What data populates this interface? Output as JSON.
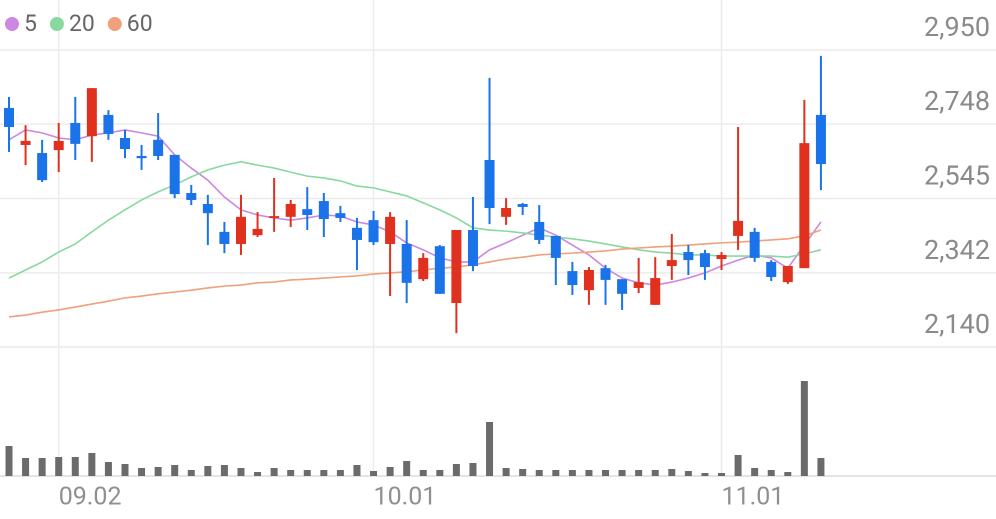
{
  "chart_data": {
    "type": "candlestick",
    "categories": [
      null,
      null,
      null,
      "09.02",
      null,
      null,
      null,
      null,
      null,
      null,
      null,
      null,
      null,
      null,
      null,
      null,
      null,
      null,
      null,
      null,
      null,
      null,
      "10.01",
      null,
      null,
      null,
      null,
      null,
      null,
      null,
      null,
      null,
      null,
      null,
      null,
      null,
      null,
      null,
      null,
      null,
      null,
      null,
      null,
      "11.01",
      null,
      null,
      null,
      null,
      null,
      null
    ],
    "open": [
      2792,
      2691,
      2669,
      2677,
      2751,
      2715,
      2773,
      2710,
      2661,
      2705,
      2664,
      2560,
      2530,
      2454,
      2421,
      2445,
      2492,
      2495,
      2516,
      2538,
      2505,
      2465,
      2486,
      2421,
      2421,
      2325,
      2415,
      2260,
      2459,
      2650,
      2495,
      2530,
      2481,
      2443,
      2347,
      2295,
      2355,
      2325,
      2301,
      2255,
      2361,
      2399,
      2396,
      2380,
      2443,
      2454,
      2372,
      2317,
      2355,
      2773
    ],
    "high": [
      2822,
      2745,
      2705,
      2751,
      2822,
      2846,
      2786,
      2732,
      2691,
      2778,
      2664,
      2582,
      2555,
      2481,
      2555,
      2508,
      2601,
      2541,
      2576,
      2560,
      2525,
      2492,
      2511,
      2508,
      2486,
      2396,
      2418,
      2459,
      2549,
      2874,
      2546,
      2533,
      2527,
      2443,
      2372,
      2358,
      2364,
      2325,
      2383,
      2385,
      2448,
      2418,
      2405,
      2399,
      2740,
      2465,
      2377,
      2361,
      2814,
      2934
    ],
    "low": [
      2672,
      2636,
      2590,
      2617,
      2650,
      2645,
      2705,
      2655,
      2623,
      2650,
      2546,
      2527,
      2418,
      2396,
      2391,
      2440,
      2454,
      2467,
      2459,
      2440,
      2481,
      2350,
      2418,
      2279,
      2260,
      2320,
      2285,
      2178,
      2347,
      2475,
      2473,
      2500,
      2421,
      2309,
      2282,
      2255,
      2255,
      2241,
      2287,
      2255,
      2323,
      2336,
      2323,
      2350,
      2405,
      2372,
      2320,
      2312,
      2355,
      2568
    ],
    "close": [
      2740,
      2702,
      2595,
      2702,
      2694,
      2846,
      2721,
      2680,
      2655,
      2661,
      2557,
      2541,
      2505,
      2421,
      2495,
      2462,
      2497,
      2530,
      2500,
      2489,
      2492,
      2432,
      2426,
      2495,
      2315,
      2383,
      2285,
      2459,
      2361,
      2519,
      2519,
      2522,
      2432,
      2383,
      2309,
      2350,
      2323,
      2285,
      2317,
      2328,
      2377,
      2377,
      2358,
      2391,
      2484,
      2383,
      2331,
      2361,
      2696,
      2639
    ],
    "volume": [
      30,
      18,
      18,
      19,
      19,
      23,
      14,
      12,
      8,
      9,
      11,
      6,
      10,
      11,
      8,
      4,
      8,
      6,
      6,
      6,
      6,
      11,
      5,
      9,
      15,
      6,
      6,
      12,
      13,
      54,
      8,
      7,
      6,
      6,
      6,
      6,
      6,
      6,
      6,
      6,
      7,
      5,
      3,
      3,
      21,
      8,
      6,
      4,
      95,
      18
    ],
    "up_color": "#e0301e",
    "down_color": "#1a73e8",
    "volume_color": "#6b6b6b",
    "series": [
      {
        "name": "5",
        "color": "#cc88e0",
        "values": [
          2705,
          2732,
          2724,
          2710,
          2705,
          2718,
          2724,
          2732,
          2724,
          2715,
          2664,
          2628,
          2595,
          2549,
          2514,
          2500,
          2492,
          2486,
          2492,
          2500,
          2497,
          2481,
          2473,
          2454,
          2424,
          2405,
          2383,
          2372,
          2372,
          2405,
          2424,
          2445,
          2465,
          2445,
          2418,
          2391,
          2355,
          2328,
          2315,
          2309,
          2317,
          2328,
          2342,
          2361,
          2377,
          2391,
          2383,
          2355,
          2418,
          2481
        ]
      },
      {
        "name": "20",
        "color": "#88d8a0",
        "values": [
          2328,
          2350,
          2372,
          2399,
          2421,
          2454,
          2486,
          2514,
          2541,
          2563,
          2582,
          2604,
          2623,
          2636,
          2645,
          2636,
          2628,
          2617,
          2606,
          2601,
          2593,
          2579,
          2574,
          2563,
          2552,
          2533,
          2514,
          2492,
          2465,
          2459,
          2456,
          2451,
          2445,
          2440,
          2435,
          2429,
          2421,
          2413,
          2405,
          2399,
          2396,
          2391,
          2391,
          2388,
          2388,
          2388,
          2388,
          2385,
          2394,
          2405
        ]
      },
      {
        "name": "60",
        "color": "#f0a07a",
        "values": [
          2222,
          2227,
          2235,
          2241,
          2249,
          2257,
          2265,
          2274,
          2279,
          2285,
          2290,
          2295,
          2301,
          2306,
          2309,
          2315,
          2317,
          2323,
          2325,
          2328,
          2331,
          2334,
          2339,
          2342,
          2345,
          2350,
          2355,
          2358,
          2364,
          2372,
          2380,
          2385,
          2391,
          2394,
          2396,
          2399,
          2402,
          2407,
          2410,
          2413,
          2415,
          2418,
          2421,
          2424,
          2426,
          2429,
          2432,
          2435,
          2443,
          2459
        ]
      }
    ],
    "ylim": [
      2140,
      2950
    ],
    "yticks": [
      {
        "value": 2140,
        "label": "2,140"
      },
      {
        "value": 2342,
        "label": "2,342"
      },
      {
        "value": 2545,
        "label": "2,545"
      },
      {
        "value": 2748,
        "label": "2,748"
      },
      {
        "value": 2950,
        "label": "2,950"
      }
    ],
    "grid": true
  }
}
